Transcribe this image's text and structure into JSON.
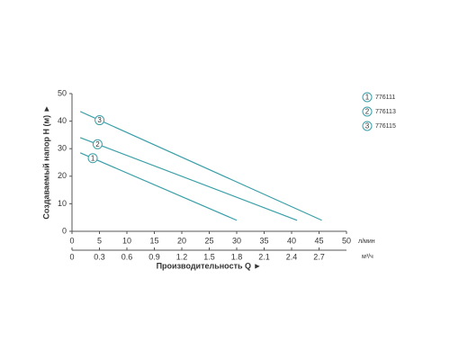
{
  "chart_data": {
    "type": "line",
    "xlabel": "Производительность Q ►",
    "ylabel": "Создаваемый напор H (м) ►",
    "xunit": "л/мин",
    "x2unit": "м³/ч",
    "xlim": [
      0,
      50
    ],
    "xticks": [
      0,
      5,
      10,
      15,
      20,
      25,
      30,
      35,
      40,
      45,
      50
    ],
    "x2lim": [
      0,
      3
    ],
    "x2ticks": [
      0,
      0.3,
      0.6,
      0.9,
      1.2,
      1.5,
      1.8,
      2.1,
      2.4,
      2.7
    ],
    "ylim": [
      0,
      50
    ],
    "yticks": [
      0,
      10,
      20,
      30,
      40,
      50
    ],
    "grid": false,
    "series": [
      {
        "marker": "1",
        "name": "776111",
        "color": "#3a9fa8",
        "x": [
          1.5,
          30
        ],
        "values": [
          28.5,
          4
        ]
      },
      {
        "marker": "2",
        "name": "776113",
        "color": "#3a9fa8",
        "x": [
          1.5,
          41
        ],
        "values": [
          34,
          4
        ]
      },
      {
        "marker": "3",
        "name": "776115",
        "color": "#3a9fa8",
        "x": [
          1.5,
          45.5
        ],
        "values": [
          43.5,
          4
        ]
      }
    ]
  }
}
